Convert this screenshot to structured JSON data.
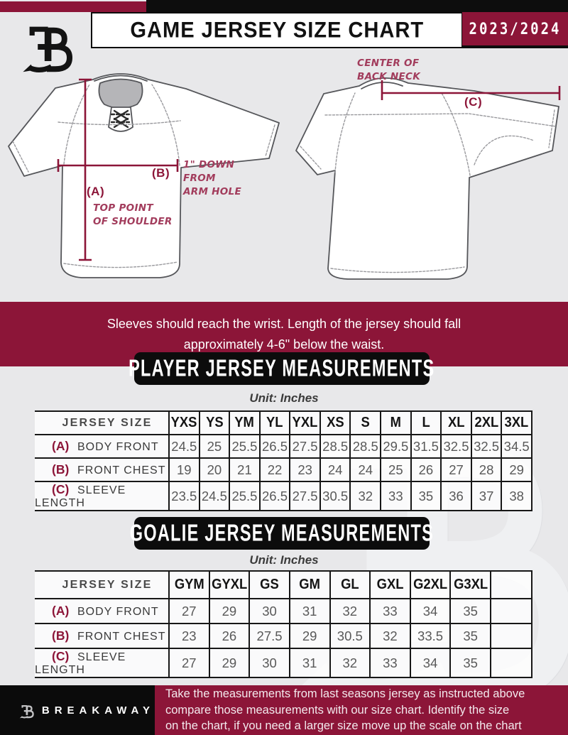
{
  "colors": {
    "maroon": "#8C1538",
    "black": "#0d0d0d",
    "annotation_red": "#A23C5C",
    "table_value_gray": "#595959",
    "background_gray": "#e8e8ea"
  },
  "header": {
    "title": "GAME JERSEY SIZE CHART",
    "season": "2023/2024"
  },
  "diagram": {
    "front": {
      "label_a": "(A)",
      "note_a": "TOP POINT\nOF SHOULDER",
      "label_b": "(B)",
      "note_b": "1\" DOWN\nFROM\nARM HOLE"
    },
    "back": {
      "label_c": "(C)",
      "note_c": "CENTER OF\nBACK NECK"
    }
  },
  "fit_note": "Sleeves should reach the wrist. Length of the jersey should fall\napproximately 4-6\" below the waist.",
  "sections": [
    {
      "title": "PLAYER JERSEY MEASUREMENTS",
      "unit": "Unit: Inches",
      "table": {
        "corner": "JERSEY SIZE",
        "sizes": [
          "YXS",
          "YS",
          "YM",
          "YL",
          "YXL",
          "XS",
          "S",
          "M",
          "L",
          "XL",
          "2XL",
          "3XL"
        ],
        "trailing_empty_col": false,
        "rows": [
          {
            "key": "(A)",
            "label": "BODY FRONT",
            "values": [
              "24.5",
              "25",
              "25.5",
              "26.5",
              "27.5",
              "28.5",
              "28.5",
              "29.5",
              "31.5",
              "32.5",
              "32.5",
              "34.5"
            ]
          },
          {
            "key": "(B)",
            "label": "FRONT CHEST",
            "values": [
              "19",
              "20",
              "21",
              "22",
              "23",
              "24",
              "24",
              "25",
              "26",
              "27",
              "28",
              "29"
            ]
          },
          {
            "key": "(C)",
            "label": "SLEEVE LENGTH",
            "values": [
              "23.5",
              "24.5",
              "25.5",
              "26.5",
              "27.5",
              "30.5",
              "32",
              "33",
              "35",
              "36",
              "37",
              "38"
            ]
          }
        ]
      }
    },
    {
      "title": "GOALIE JERSEY MEASUREMENTS",
      "unit": "Unit: Inches",
      "table": {
        "corner": "JERSEY SIZE",
        "sizes": [
          "GYM",
          "GYXL",
          "GS",
          "GM",
          "GL",
          "GXL",
          "G2XL",
          "G3XL"
        ],
        "trailing_empty_col": true,
        "rows": [
          {
            "key": "(A)",
            "label": "BODY FRONT",
            "values": [
              "27",
              "29",
              "30",
              "31",
              "32",
              "33",
              "34",
              "35"
            ]
          },
          {
            "key": "(B)",
            "label": "FRONT CHEST",
            "values": [
              "23",
              "26",
              "27.5",
              "29",
              "30.5",
              "32",
              "33.5",
              "35"
            ]
          },
          {
            "key": "(C)",
            "label": "SLEEVE LENGTH",
            "values": [
              "27",
              "29",
              "30",
              "31",
              "32",
              "33",
              "34",
              "35"
            ]
          }
        ]
      }
    }
  ],
  "footer": {
    "brand": "BREAKAWAY",
    "note": "Take the measurements from last seasons jersey as instructed above\ncompare those measurements  with our size chart. Identify the size\non the chart, if you need a larger size move up the scale on the chart"
  }
}
